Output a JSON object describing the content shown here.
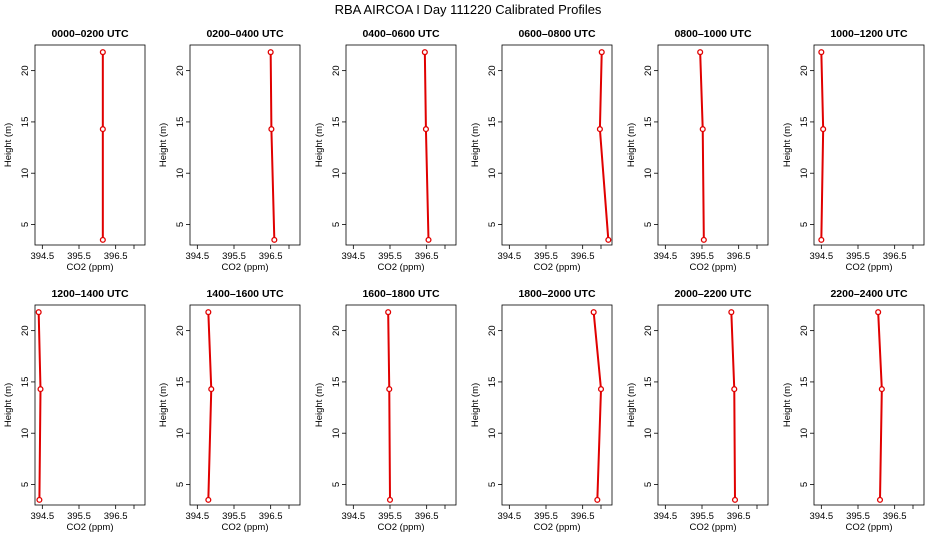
{
  "figure": {
    "title": "RBA AIRCOA I  Day 111220  Calibrated Profiles"
  },
  "colors": {
    "line": "#e00000",
    "marker": "#e00000",
    "axis": "#000000"
  },
  "chart_data": [
    {
      "type": "line",
      "title": "0000–0200 UTC",
      "xlabel": "CO2 (ppm)",
      "ylabel": "Height (m)",
      "x": [
        396.15,
        396.15,
        396.15
      ],
      "y": [
        3.5,
        14.3,
        21.8
      ],
      "xlim": [
        394.3,
        397.3
      ],
      "ylim": [
        3.0,
        22.5
      ],
      "xticks": [
        "394.5",
        "395.5",
        "396.5"
      ],
      "yticks": [
        "5",
        "10",
        "15",
        "20"
      ]
    },
    {
      "type": "line",
      "title": "0200–0400 UTC",
      "xlabel": "CO2 (ppm)",
      "ylabel": "Height (m)",
      "x": [
        396.6,
        396.52,
        396.5
      ],
      "y": [
        3.5,
        14.3,
        21.8
      ],
      "xlim": [
        394.3,
        397.3
      ],
      "ylim": [
        3.0,
        22.5
      ],
      "xticks": [
        "394.5",
        "395.5",
        "396.5"
      ],
      "yticks": [
        "5",
        "10",
        "15",
        "20"
      ]
    },
    {
      "type": "line",
      "title": "0400–0600 UTC",
      "xlabel": "CO2 (ppm)",
      "ylabel": "Height (m)",
      "x": [
        396.55,
        396.48,
        396.45
      ],
      "y": [
        3.5,
        14.3,
        21.8
      ],
      "xlim": [
        394.3,
        397.3
      ],
      "ylim": [
        3.0,
        22.5
      ],
      "xticks": [
        "394.5",
        "395.5",
        "396.5"
      ],
      "yticks": [
        "5",
        "10",
        "15",
        "20"
      ]
    },
    {
      "type": "line",
      "title": "0600–0800 UTC",
      "xlabel": "CO2 (ppm)",
      "ylabel": "Height (m)",
      "x": [
        397.2,
        396.97,
        397.02
      ],
      "y": [
        3.5,
        14.3,
        21.8
      ],
      "xlim": [
        394.3,
        397.3
      ],
      "ylim": [
        3.0,
        22.5
      ],
      "xticks": [
        "394.5",
        "395.5",
        "396.5"
      ],
      "yticks": [
        "5",
        "10",
        "15",
        "20"
      ]
    },
    {
      "type": "line",
      "title": "0800–1000 UTC",
      "xlabel": "CO2 (ppm)",
      "ylabel": "Height (m)",
      "x": [
        395.55,
        395.52,
        395.45
      ],
      "y": [
        3.5,
        14.3,
        21.8
      ],
      "xlim": [
        394.3,
        397.3
      ],
      "ylim": [
        3.0,
        22.5
      ],
      "xticks": [
        "394.5",
        "395.5",
        "396.5"
      ],
      "yticks": [
        "5",
        "10",
        "15",
        "20"
      ]
    },
    {
      "type": "line",
      "title": "1000–1200 UTC",
      "xlabel": "CO2 (ppm)",
      "ylabel": "Height (m)",
      "x": [
        394.5,
        394.55,
        394.5
      ],
      "y": [
        3.5,
        14.3,
        21.8
      ],
      "xlim": [
        394.3,
        397.3
      ],
      "ylim": [
        3.0,
        22.5
      ],
      "xticks": [
        "394.5",
        "395.5",
        "396.5"
      ],
      "yticks": [
        "5",
        "10",
        "15",
        "20"
      ]
    },
    {
      "type": "line",
      "title": "1200–1400 UTC",
      "xlabel": "CO2 (ppm)",
      "ylabel": "Height (m)",
      "x": [
        394.42,
        394.45,
        394.4
      ],
      "y": [
        3.5,
        14.3,
        21.8
      ],
      "xlim": [
        394.3,
        397.3
      ],
      "ylim": [
        3.0,
        22.5
      ],
      "xticks": [
        "394.5",
        "395.5",
        "396.5"
      ],
      "yticks": [
        "5",
        "10",
        "15",
        "20"
      ]
    },
    {
      "type": "line",
      "title": "1400–1600 UTC",
      "xlabel": "CO2 (ppm)",
      "ylabel": "Height (m)",
      "x": [
        394.8,
        394.88,
        394.8
      ],
      "y": [
        3.5,
        14.3,
        21.8
      ],
      "xlim": [
        394.3,
        397.3
      ],
      "ylim": [
        3.0,
        22.5
      ],
      "xticks": [
        "394.5",
        "395.5",
        "396.5"
      ],
      "yticks": [
        "5",
        "10",
        "15",
        "20"
      ]
    },
    {
      "type": "line",
      "title": "1600–1800 UTC",
      "xlabel": "CO2 (ppm)",
      "ylabel": "Height (m)",
      "x": [
        395.5,
        395.48,
        395.45
      ],
      "y": [
        3.5,
        14.3,
        21.8
      ],
      "xlim": [
        394.3,
        397.3
      ],
      "ylim": [
        3.0,
        22.5
      ],
      "xticks": [
        "394.5",
        "395.5",
        "396.5"
      ],
      "yticks": [
        "5",
        "10",
        "15",
        "20"
      ]
    },
    {
      "type": "line",
      "title": "1800–2000 UTC",
      "xlabel": "CO2 (ppm)",
      "ylabel": "Height (m)",
      "x": [
        396.9,
        397.0,
        396.8
      ],
      "y": [
        3.5,
        14.3,
        21.8
      ],
      "xlim": [
        394.3,
        397.3
      ],
      "ylim": [
        3.0,
        22.5
      ],
      "xticks": [
        "394.5",
        "395.5",
        "396.5"
      ],
      "yticks": [
        "5",
        "10",
        "15",
        "20"
      ]
    },
    {
      "type": "line",
      "title": "2000–2200 UTC",
      "xlabel": "CO2 (ppm)",
      "ylabel": "Height (m)",
      "x": [
        396.4,
        396.38,
        396.3
      ],
      "y": [
        3.5,
        14.3,
        21.8
      ],
      "xlim": [
        394.3,
        397.3
      ],
      "ylim": [
        3.0,
        22.5
      ],
      "xticks": [
        "394.5",
        "395.5",
        "396.5"
      ],
      "yticks": [
        "5",
        "10",
        "15",
        "20"
      ]
    },
    {
      "type": "line",
      "title": "2200–2400 UTC",
      "xlabel": "CO2 (ppm)",
      "ylabel": "Height (m)",
      "x": [
        396.1,
        396.15,
        396.05
      ],
      "y": [
        3.5,
        14.3,
        21.8
      ],
      "xlim": [
        394.3,
        397.3
      ],
      "ylim": [
        3.0,
        22.5
      ],
      "xticks": [
        "394.5",
        "395.5",
        "396.5"
      ],
      "yticks": [
        "5",
        "10",
        "15",
        "20"
      ]
    }
  ]
}
